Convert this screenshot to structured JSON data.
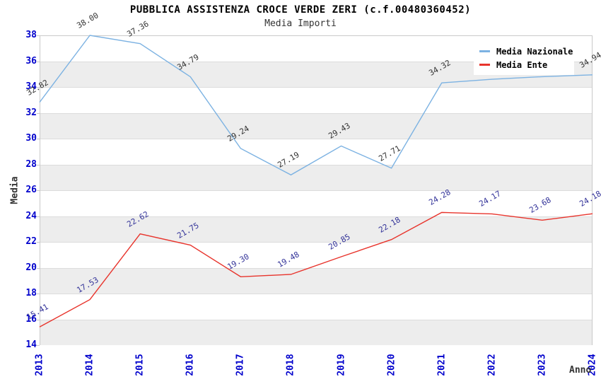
{
  "chart_data": {
    "type": "line",
    "title": "PUBBLICA ASSISTENZA CROCE VERDE ZERI (c.f.00480360452)",
    "subtitle": "Media Importi",
    "xlabel": "Anno",
    "ylabel": "Media",
    "ylim": [
      14,
      38
    ],
    "ytick_step": 2,
    "grid": "horizontal-bands",
    "legend_position": "top-right",
    "categories": [
      "2013",
      "2014",
      "2015",
      "2016",
      "2017",
      "2018",
      "2019",
      "2020",
      "2021",
      "2022",
      "2023",
      "2024"
    ],
    "series": [
      {
        "name": "Media Nazionale",
        "color": "#7CB2E2",
        "label_color": "#333333",
        "values": [
          32.82,
          38.0,
          37.36,
          34.79,
          29.24,
          27.19,
          29.43,
          27.71,
          34.32,
          34.6,
          34.8,
          34.94
        ],
        "labels": [
          "32.82",
          "38.00",
          "37.36",
          "34.79",
          "29.24",
          "27.19",
          "29.43",
          "27.71",
          "34.32",
          "",
          "",
          "34.94"
        ]
      },
      {
        "name": "Media Ente",
        "color": "#E8342C",
        "label_color": "#333399",
        "values": [
          15.41,
          17.53,
          22.62,
          21.75,
          19.3,
          19.48,
          20.85,
          22.18,
          24.28,
          24.17,
          23.68,
          24.18
        ],
        "labels": [
          "15.41",
          "17.53",
          "22.62",
          "21.75",
          "19.30",
          "19.48",
          "20.85",
          "22.18",
          "24.28",
          "24.17",
          "23.68",
          "24.18"
        ]
      }
    ],
    "colors": {
      "tick_label": "#0000CC",
      "band": "#EDEDED",
      "grid_line": "#DCDCDC",
      "plot_border": "#C9C9C9",
      "legend_background": "#FFFFFF"
    }
  }
}
